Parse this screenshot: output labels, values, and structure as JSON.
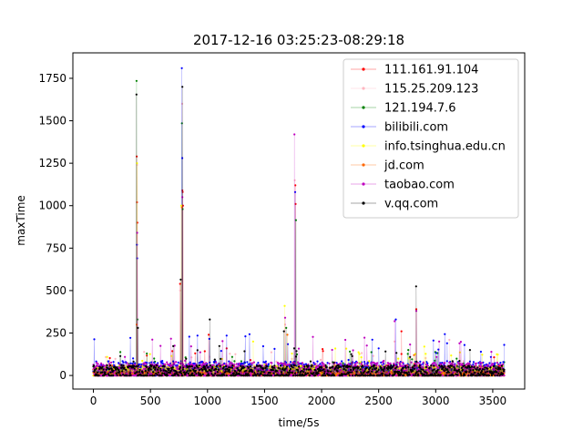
{
  "chart_data": {
    "type": "scatter",
    "title": "2017-12-16 03:25:23-08:29:18",
    "xlabel": "time/5s",
    "ylabel": "maxTime",
    "xlim": [
      -180,
      3780
    ],
    "ylim": [
      -80,
      1900
    ],
    "xticks": [
      0,
      500,
      1000,
      1500,
      2000,
      2500,
      3000,
      3500
    ],
    "yticks": [
      0,
      250,
      500,
      750,
      1000,
      1250,
      1500,
      1750
    ],
    "grid": false,
    "legend_position": "top-right",
    "x_range": [
      0,
      3600
    ],
    "series": [
      {
        "name": "111.161.91.104",
        "color": "#ff0000",
        "base": 25,
        "spread": 35,
        "spikes": [
          [
            380,
            1290
          ],
          [
            382,
            1020
          ],
          [
            385,
            900
          ],
          [
            780,
            1090
          ],
          [
            782,
            1080
          ],
          [
            785,
            1000
          ],
          [
            1770,
            1120
          ],
          [
            1772,
            1010
          ],
          [
            760,
            540
          ],
          [
            2830,
            390
          ],
          [
            1010,
            240
          ],
          [
            2700,
            260
          ]
        ]
      },
      {
        "name": "115.25.209.123",
        "color": "#ffb6c1",
        "base": 22,
        "spread": 30,
        "spikes": [
          [
            383,
            1240
          ],
          [
            778,
            1600
          ],
          [
            1765,
            1150
          ],
          [
            1680,
            300
          ],
          [
            2640,
            200
          ],
          [
            3120,
            210
          ],
          [
            760,
            500
          ]
        ]
      },
      {
        "name": "121.194.7.6",
        "color": "#008000",
        "base": 24,
        "spread": 30,
        "spikes": [
          [
            378,
            1735
          ],
          [
            776,
            1485
          ],
          [
            386,
            330
          ],
          [
            1775,
            915
          ],
          [
            1690,
            280
          ],
          [
            782,
            980
          ],
          [
            2760,
            150
          ]
        ]
      },
      {
        "name": "bilibili.com",
        "color": "#0000ff",
        "base": 30,
        "spread": 55,
        "spikes": [
          [
            775,
            1810
          ],
          [
            381,
            770
          ],
          [
            384,
            690
          ],
          [
            1768,
            1080
          ],
          [
            779,
            1280
          ],
          [
            2650,
            330
          ],
          [
            3100,
            190
          ],
          [
            3600,
            180
          ],
          [
            2500,
            160
          ]
        ]
      },
      {
        "name": "info.tsinghua.edu.cn",
        "color": "#ffff00",
        "base": 22,
        "spread": 35,
        "spikes": [
          [
            382,
            1250
          ],
          [
            1676,
            410
          ],
          [
            1400,
            200
          ],
          [
            770,
            1000
          ],
          [
            2900,
            170
          ]
        ]
      },
      {
        "name": "jd.com",
        "color": "#ff6600",
        "base": 8,
        "spread": 14,
        "spikes": [
          [
            380,
            300
          ],
          [
            776,
            990
          ],
          [
            1700,
            240
          ],
          [
            2810,
            120
          ]
        ]
      },
      {
        "name": "taobao.com",
        "color": "#bf00bf",
        "base": 28,
        "spread": 50,
        "spikes": [
          [
            384,
            840
          ],
          [
            1762,
            1420
          ],
          [
            2640,
            320
          ],
          [
            2830,
            380
          ],
          [
            780,
            1050
          ],
          [
            1680,
            340
          ],
          [
            3030,
            200
          ]
        ]
      },
      {
        "name": "v.qq.com",
        "color": "#000000",
        "base": 22,
        "spread": 38,
        "spikes": [
          [
            377,
            1655
          ],
          [
            780,
            1700
          ],
          [
            765,
            565
          ],
          [
            1020,
            330
          ],
          [
            2828,
            525
          ],
          [
            390,
            280
          ],
          [
            1670,
            260
          ],
          [
            3300,
            150
          ]
        ]
      }
    ]
  }
}
